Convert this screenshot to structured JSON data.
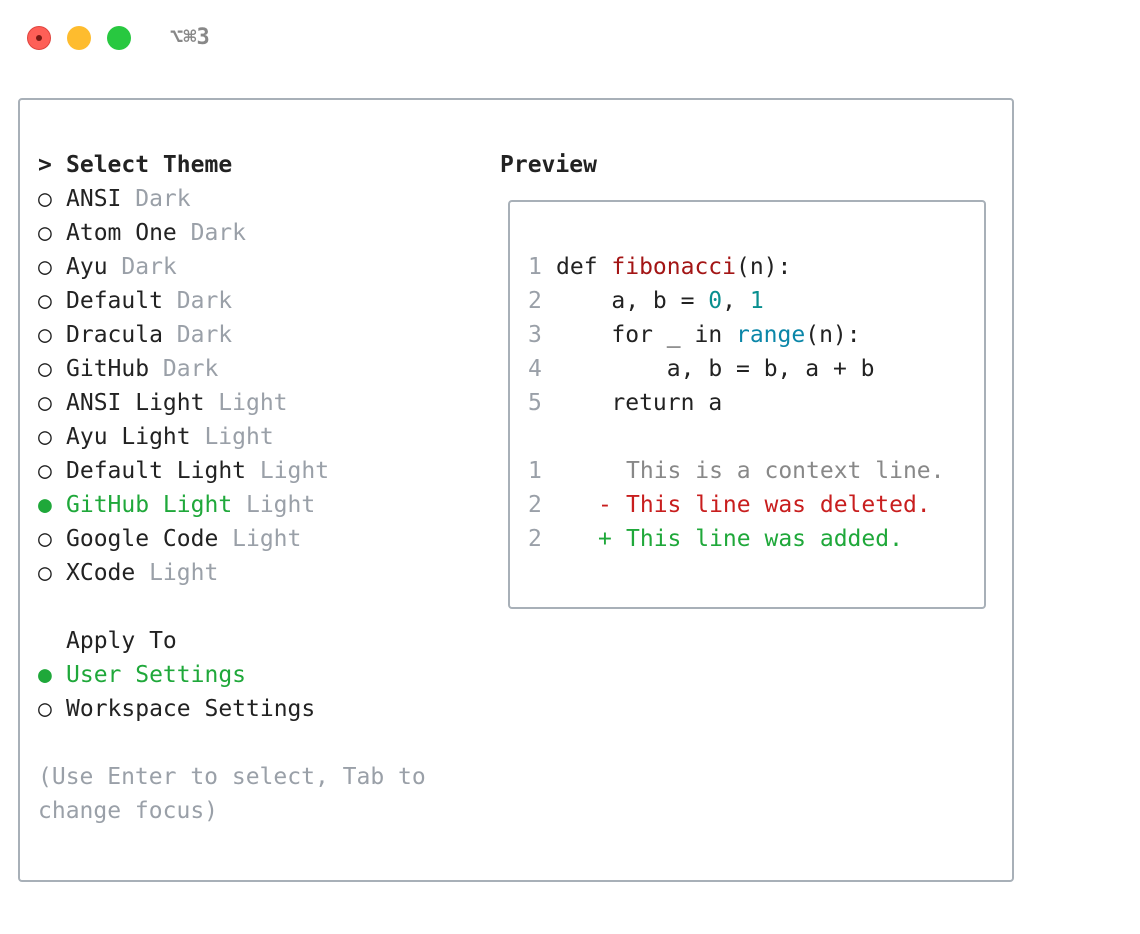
{
  "window": {
    "shortcut": "⌥⌘3"
  },
  "themes": {
    "prompt": ">",
    "title": "Select Theme",
    "items": [
      {
        "marker": "○",
        "name": "ANSI",
        "variant": "Dark",
        "selected": false
      },
      {
        "marker": "○",
        "name": "Atom One",
        "variant": "Dark",
        "selected": false
      },
      {
        "marker": "○",
        "name": "Ayu",
        "variant": "Dark",
        "selected": false
      },
      {
        "marker": "○",
        "name": "Default",
        "variant": "Dark",
        "selected": false
      },
      {
        "marker": "○",
        "name": "Dracula",
        "variant": "Dark",
        "selected": false
      },
      {
        "marker": "○",
        "name": "GitHub",
        "variant": "Dark",
        "selected": false
      },
      {
        "marker": "○",
        "name": "ANSI Light",
        "variant": "Light",
        "selected": false
      },
      {
        "marker": "○",
        "name": "Ayu Light",
        "variant": "Light",
        "selected": false
      },
      {
        "marker": "○",
        "name": "Default Light",
        "variant": "Light",
        "selected": false
      },
      {
        "marker": "●",
        "name": "GitHub Light",
        "variant": "Light",
        "selected": true
      },
      {
        "marker": "○",
        "name": "Google Code",
        "variant": "Light",
        "selected": false
      },
      {
        "marker": "○",
        "name": "XCode",
        "variant": "Light",
        "selected": false
      }
    ]
  },
  "preview": {
    "title": "Preview",
    "code": [
      {
        "number": "1",
        "tokens": [
          {
            "text": "def ",
            "color": "#222222"
          },
          {
            "text": "fibonacci",
            "color": "#a31515"
          },
          {
            "text": "(n):",
            "color": "#222222"
          }
        ]
      },
      {
        "number": "2",
        "tokens": [
          {
            "text": "    a, b = ",
            "color": "#222222"
          },
          {
            "text": "0",
            "color": "#098f8f"
          },
          {
            "text": ", ",
            "color": "#222222"
          },
          {
            "text": "1",
            "color": "#098f8f"
          }
        ]
      },
      {
        "number": "3",
        "tokens": [
          {
            "text": "    for _ in ",
            "color": "#222222"
          },
          {
            "text": "range",
            "color": "#0a86a8"
          },
          {
            "text": "(n):",
            "color": "#222222"
          }
        ]
      },
      {
        "number": "4",
        "tokens": [
          {
            "text": "        a, b = b, a + b",
            "color": "#222222"
          }
        ]
      },
      {
        "number": "5",
        "tokens": [
          {
            "text": "    return a",
            "color": "#222222"
          }
        ]
      }
    ],
    "diff": [
      {
        "number": "1",
        "text": "This is a context line.",
        "color": "#888888"
      },
      {
        "number": "2",
        "sign": "-",
        "text": "This line was deleted.",
        "color": "#c81e1e"
      },
      {
        "number": "2",
        "sign": "+",
        "text": "This line was added.",
        "color": "#1fa83a"
      }
    ]
  },
  "apply": {
    "title": "Apply To",
    "items": [
      {
        "marker": "●",
        "label": "User Settings",
        "selected": true
      },
      {
        "marker": "○",
        "label": "Workspace Settings",
        "selected": false
      }
    ]
  },
  "help": [
    "(Use Enter to select, Tab to",
    "change focus)"
  ]
}
